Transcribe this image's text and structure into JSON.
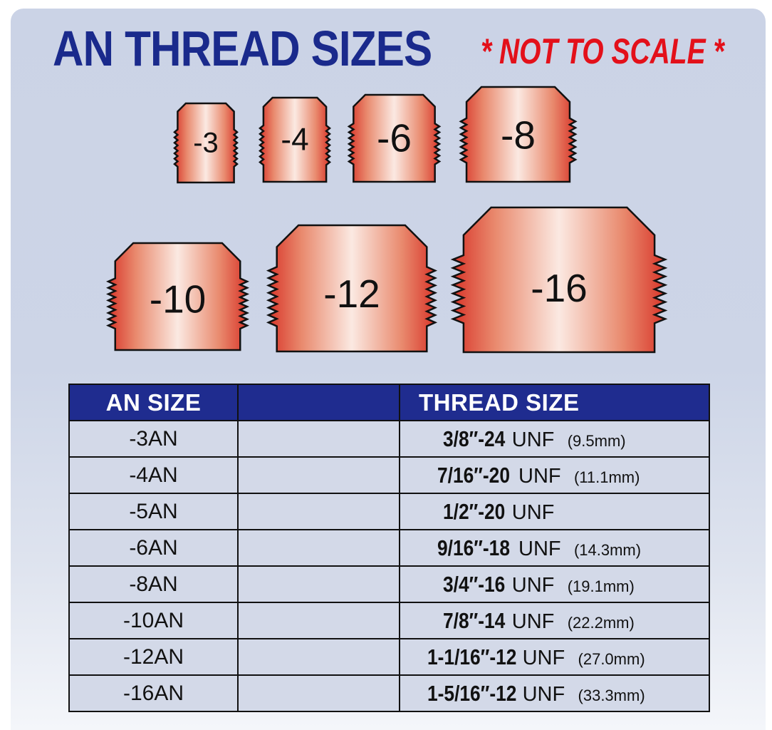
{
  "title": "AN THREAD SIZES",
  "note": "* NOT TO SCALE *",
  "colors": {
    "title": "#1a2a8c",
    "note": "#e3101a",
    "header_bg": "#1f2c8f",
    "copper_edge": "#d8362a",
    "copper_light": "#fbe9e2"
  },
  "fittings": [
    "-3",
    "-4",
    "-6",
    "-8",
    "-10",
    "-12",
    "-16"
  ],
  "table": {
    "headers": [
      "AN SIZE",
      "",
      "THREAD SIZE"
    ],
    "rows": [
      {
        "an": "-3AN",
        "thread": "3/8″-24",
        "unf": "UNF",
        "mm": "(9.5mm)"
      },
      {
        "an": "-4AN",
        "thread": "7/16″-20",
        "unf": "UNF",
        "mm": "(11.1mm)"
      },
      {
        "an": "-5AN",
        "thread": "1/2″-20",
        "unf": "UNF",
        "mm": ""
      },
      {
        "an": "-6AN",
        "thread": "9/16″-18",
        "unf": "UNF",
        "mm": "(14.3mm)"
      },
      {
        "an": "-8AN",
        "thread": "3/4″-16",
        "unf": "UNF",
        "mm": "(19.1mm)"
      },
      {
        "an": "-10AN",
        "thread": "7/8″-14",
        "unf": "UNF",
        "mm": "(22.2mm)"
      },
      {
        "an": "-12AN",
        "thread": "1-1/16″-12",
        "unf": "UNF",
        "mm": "(27.0mm)"
      },
      {
        "an": "-16AN",
        "thread": "1-5/16″-12",
        "unf": "UNF",
        "mm": "(33.3mm)"
      }
    ]
  }
}
